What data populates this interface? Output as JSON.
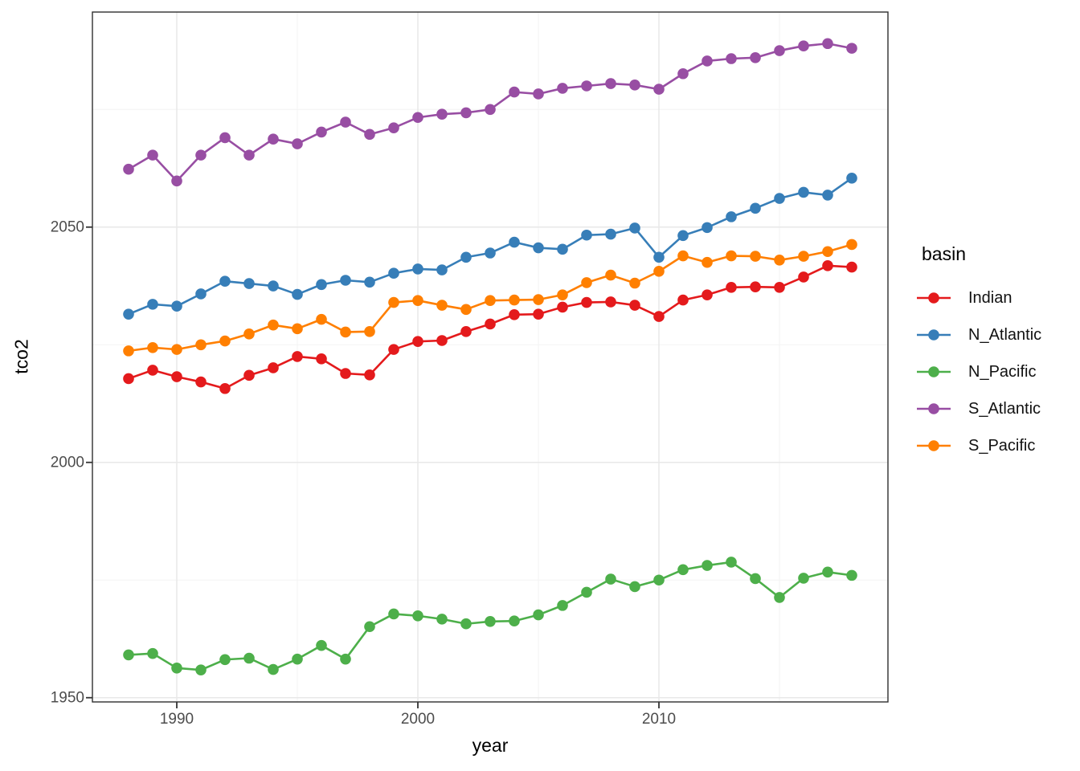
{
  "chart_data": {
    "type": "line",
    "xlabel": "year",
    "ylabel": "tco2",
    "legend_title": "basin",
    "legend_position": "right",
    "grid": "major+minor",
    "panel_background": "#ffffff",
    "panel_border_color": "#2f2f2f",
    "major_grid_color": "#e8e8e8",
    "minor_grid_color": "#f3f3f3",
    "tick_mark_color": "#333333",
    "tick_text_color": "#4d4d4d",
    "xlim": [
      1986.5,
      2019.5
    ],
    "ylim": [
      1949.1,
      2095.7
    ],
    "xticks": [
      {
        "value": 1990,
        "label": "1990"
      },
      {
        "value": 2000,
        "label": "2000"
      },
      {
        "value": 2010,
        "label": "2010"
      }
    ],
    "yticks": [
      {
        "value": 1950,
        "label": "1950"
      },
      {
        "value": 2000,
        "label": "2000"
      },
      {
        "value": 2050,
        "label": "2050"
      }
    ],
    "xminor": [
      1995,
      2005,
      2015
    ],
    "yminor": [
      1975,
      2025,
      2075
    ],
    "x": [
      1988,
      1989,
      1990,
      1991,
      1992,
      1993,
      1994,
      1995,
      1996,
      1997,
      1998,
      1999,
      2000,
      2001,
      2002,
      2003,
      2004,
      2005,
      2006,
      2007,
      2008,
      2009,
      2010,
      2011,
      2012,
      2013,
      2014,
      2015,
      2016,
      2017,
      2018
    ],
    "series": [
      {
        "name": "Indian",
        "color": "#E41A1C",
        "values": [
          2017.8,
          2019.6,
          2018.2,
          2017.1,
          2015.7,
          2018.5,
          2020.1,
          2022.5,
          2022.0,
          2018.9,
          2018.6,
          2024.0,
          2025.7,
          2025.9,
          2027.8,
          2029.4,
          2031.4,
          2031.5,
          2033.0,
          2034.0,
          2034.1,
          2033.4,
          2031.0,
          2034.5,
          2035.6,
          2037.2,
          2037.3,
          2037.2,
          2039.4,
          2041.8,
          2041.5
        ]
      },
      {
        "name": "N_Atlantic",
        "color": "#377EB8",
        "values": [
          2031.5,
          2033.6,
          2033.2,
          2035.8,
          2038.5,
          2038.0,
          2037.5,
          2035.7,
          2037.8,
          2038.7,
          2038.3,
          2040.2,
          2041.1,
          2040.9,
          2043.6,
          2044.5,
          2046.8,
          2045.6,
          2045.3,
          2048.3,
          2048.5,
          2049.8,
          2043.6,
          2048.2,
          2049.9,
          2052.2,
          2054.0,
          2056.1,
          2057.4,
          2056.8,
          2060.4
        ]
      },
      {
        "name": "N_Pacific",
        "color": "#4DAF4A",
        "values": [
          1959.1,
          1959.4,
          1956.3,
          1955.9,
          1958.1,
          1958.4,
          1956.0,
          1958.2,
          1961.1,
          1958.2,
          1965.1,
          1967.8,
          1967.4,
          1966.7,
          1965.7,
          1966.2,
          1966.3,
          1967.6,
          1969.6,
          1972.4,
          1975.2,
          1973.6,
          1975.0,
          1977.2,
          1978.1,
          1978.8,
          1975.3,
          1971.3,
          1975.4,
          1976.7,
          1976.0
        ]
      },
      {
        "name": "S_Atlantic",
        "color": "#984EA3",
        "values": [
          2062.3,
          2065.3,
          2059.8,
          2065.3,
          2069.0,
          2065.3,
          2068.7,
          2067.7,
          2070.2,
          2072.3,
          2069.7,
          2071.1,
          2073.3,
          2074.0,
          2074.3,
          2075.0,
          2078.7,
          2078.3,
          2079.5,
          2080.0,
          2080.5,
          2080.2,
          2079.3,
          2082.6,
          2085.3,
          2085.8,
          2086.0,
          2087.5,
          2088.5,
          2089.0,
          2088.0
        ]
      },
      {
        "name": "S_Pacific",
        "color": "#FF7F00",
        "values": [
          2023.7,
          2024.4,
          2024.0,
          2025.0,
          2025.8,
          2027.3,
          2029.2,
          2028.4,
          2030.4,
          2027.7,
          2027.8,
          2034.0,
          2034.4,
          2033.4,
          2032.5,
          2034.4,
          2034.5,
          2034.6,
          2035.6,
          2038.2,
          2039.8,
          2038.1,
          2040.6,
          2043.9,
          2042.5,
          2043.9,
          2043.8,
          2043.0,
          2043.8,
          2044.8,
          2046.3
        ]
      }
    ]
  }
}
